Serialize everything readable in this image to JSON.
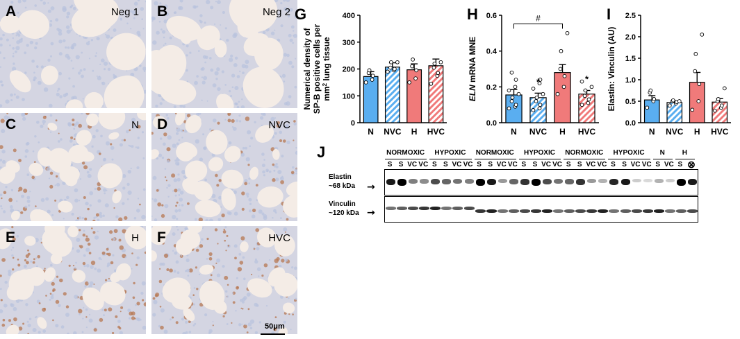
{
  "micrographs": [
    {
      "id": "A",
      "label": "Neg 1",
      "stain": "none"
    },
    {
      "id": "B",
      "label": "Neg 2",
      "stain": "none"
    },
    {
      "id": "C",
      "label": "N",
      "stain": "light"
    },
    {
      "id": "D",
      "label": "NVC",
      "stain": "light"
    },
    {
      "id": "E",
      "label": "H",
      "stain": "heavy"
    },
    {
      "id": "F",
      "label": "HVC",
      "stain": "heavy"
    }
  ],
  "scale_bar": "50μm",
  "colors": {
    "blue": "#5aaef0",
    "red": "#f07a7a",
    "hatch_blue": "#5aaef0",
    "hatch_red": "#f07a7a",
    "tissue_blue": "#b9c3de",
    "tissue_brown": "#b77752",
    "bg": "#f4ece6"
  },
  "chart_data": [
    {
      "panel": "G",
      "type": "bar",
      "categories": [
        "N",
        "NVC",
        "H",
        "HVC"
      ],
      "values": [
        172,
        207,
        197,
        212
      ],
      "errors": [
        18,
        16,
        22,
        25
      ],
      "points": [
        [
          150,
          160,
          175,
          185,
          195
        ],
        [
          190,
          195,
          200,
          205,
          225,
          225
        ],
        [
          150,
          165,
          195,
          210,
          235
        ],
        [
          145,
          175,
          185,
          205,
          220,
          225
        ]
      ],
      "ylabel": "Numerical density of SP-B positive cells per mm² lung tissue",
      "ylabel_lines": [
        "Numerical density of",
        "SP-B positive cells per",
        "mm² lung tissue"
      ],
      "ylim": [
        0,
        400
      ],
      "yticks": [
        "0",
        "100",
        "200",
        "300",
        "400"
      ],
      "annotations": []
    },
    {
      "panel": "H",
      "type": "bar",
      "categories": [
        "N",
        "NVC",
        "H",
        "HVC"
      ],
      "values": [
        0.155,
        0.14,
        0.28,
        0.16
      ],
      "errors": [
        0.03,
        0.025,
        0.045,
        0.02
      ],
      "points": [
        [
          0.08,
          0.09,
          0.1,
          0.12,
          0.14,
          0.16,
          0.18,
          0.2,
          0.24,
          0.28
        ],
        [
          0.07,
          0.08,
          0.1,
          0.12,
          0.14,
          0.16,
          0.19,
          0.22,
          0.24
        ],
        [
          0.16,
          0.2,
          0.26,
          0.3,
          0.4,
          0.5
        ],
        [
          0.1,
          0.11,
          0.13,
          0.15,
          0.18,
          0.2,
          0.23
        ]
      ],
      "stars": [
        "",
        "*",
        "",
        "*"
      ],
      "ylabel": "ELN mRNA MNE",
      "ylabel_italic": "ELN",
      "ylabel_rest": " mRNA MNE",
      "ylim": [
        0,
        0.6
      ],
      "yticks": [
        "0.0",
        "0.2",
        "0.4",
        "0.6"
      ],
      "bracket": {
        "from": "N",
        "to": "H",
        "label": "#"
      }
    },
    {
      "panel": "I",
      "type": "bar",
      "categories": [
        "N",
        "NVC",
        "H",
        "HVC"
      ],
      "values": [
        0.53,
        0.47,
        0.94,
        0.48
      ],
      "errors": [
        0.1,
        0.04,
        0.23,
        0.08
      ],
      "points": [
        [
          0.35,
          0.5,
          0.55,
          0.7,
          0.75
        ],
        [
          0.4,
          0.45,
          0.48,
          0.5,
          0.52,
          0.5
        ],
        [
          0.3,
          0.5,
          0.9,
          1.2,
          1.6,
          2.05
        ],
        [
          0.28,
          0.35,
          0.4,
          0.5,
          0.55,
          0.8
        ]
      ],
      "ylabel": "Elastin: Vinculin (AU)",
      "ylim": [
        0,
        2.5
      ],
      "yticks": [
        "0.0",
        "0.5",
        "1.0",
        "1.5",
        "2.0",
        "2.5"
      ]
    }
  ],
  "western": {
    "label": "J",
    "groups": [
      "NORMOXIC",
      "HYPOXIC",
      "NORMOXIC",
      "HYPOXIC",
      "NORMOXIC",
      "HYPOXIC",
      "N",
      "H"
    ],
    "lanes": [
      "S",
      "S",
      "VC",
      "VC",
      "S",
      "S",
      "VC",
      "VC",
      "S",
      "S",
      "VC",
      "VC",
      "S",
      "S",
      "VC",
      "VC",
      "S",
      "S",
      "VC",
      "VC",
      "S",
      "S",
      "VC",
      "VC",
      "S",
      "VC",
      "S",
      "⊗"
    ],
    "elastin_label": "Elastin",
    "elastin_kda": "~68 kDa",
    "vinculin_label": "Vinculin",
    "vinculin_kda": "~120 kDa"
  }
}
